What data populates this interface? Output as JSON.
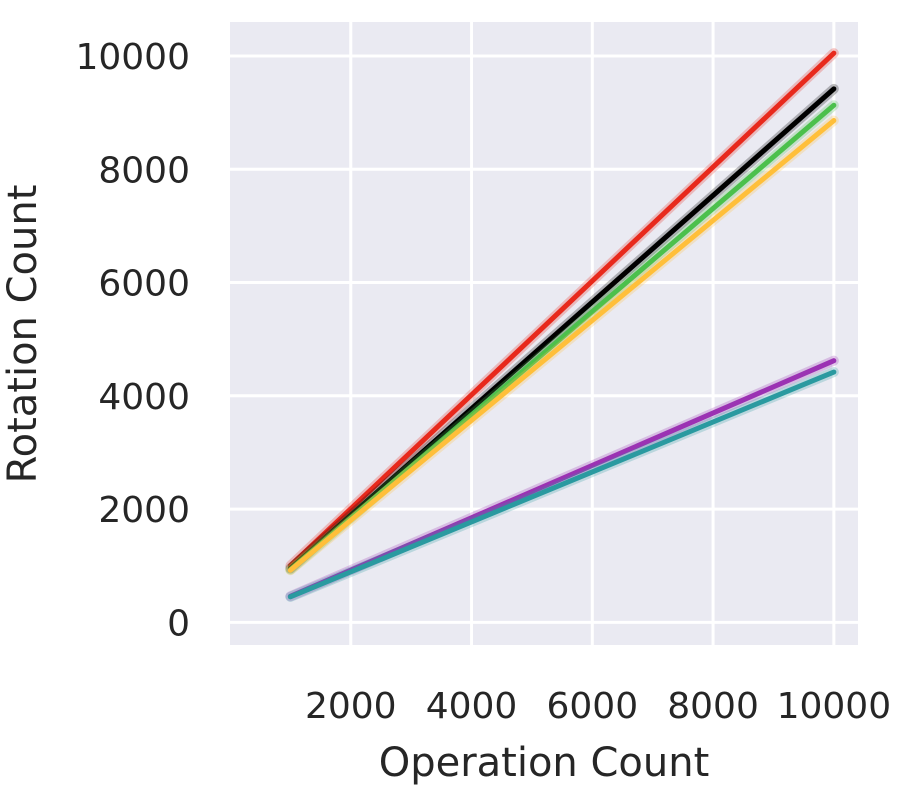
{
  "chart_data": {
    "type": "line",
    "xlabel": "Operation Count",
    "ylabel": "Rotation Count",
    "xlim": [
      0,
      10400
    ],
    "ylim": [
      -400,
      10600
    ],
    "xticks": [
      2000,
      4000,
      6000,
      8000,
      10000
    ],
    "yticks": [
      0,
      2000,
      4000,
      6000,
      8000,
      10000
    ],
    "xtick_labels": [
      "2000",
      "4000",
      "6000",
      "8000",
      "10000"
    ],
    "ytick_labels": [
      "0",
      "2000",
      "4000",
      "6000",
      "8000",
      "10000"
    ],
    "grid": true,
    "background": "#eaeaf2",
    "series": [
      {
        "color": "#e8291c",
        "x": [
          1000,
          10000
        ],
        "y": [
          1000,
          10050
        ]
      },
      {
        "color": "#000000",
        "x": [
          1000,
          10000
        ],
        "y": [
          950,
          9420
        ]
      },
      {
        "color": "#4cc04c",
        "x": [
          1000,
          10000
        ],
        "y": [
          930,
          9130
        ]
      },
      {
        "color": "#ffbf3a",
        "x": [
          1000,
          10000
        ],
        "y": [
          920,
          8860
        ]
      },
      {
        "color": "#9b32b3",
        "x": [
          1000,
          10000
        ],
        "y": [
          460,
          4620
        ]
      },
      {
        "color": "#2a9aa0",
        "x": [
          1000,
          10000
        ],
        "y": [
          450,
          4420
        ]
      }
    ]
  }
}
